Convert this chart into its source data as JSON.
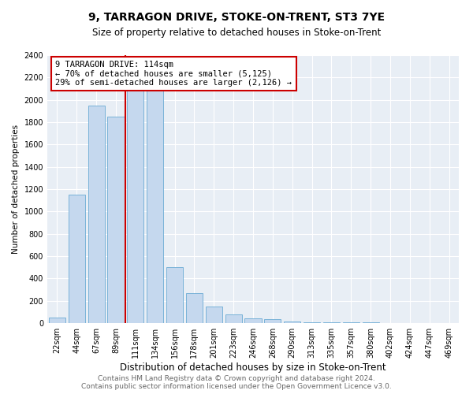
{
  "title": "9, TARRAGON DRIVE, STOKE-ON-TRENT, ST3 7YE",
  "subtitle": "Size of property relative to detached houses in Stoke-on-Trent",
  "xlabel": "Distribution of detached houses by size in Stoke-on-Trent",
  "ylabel": "Number of detached properties",
  "categories": [
    "22sqm",
    "44sqm",
    "67sqm",
    "89sqm",
    "111sqm",
    "134sqm",
    "156sqm",
    "178sqm",
    "201sqm",
    "223sqm",
    "246sqm",
    "268sqm",
    "290sqm",
    "313sqm",
    "335sqm",
    "357sqm",
    "380sqm",
    "402sqm",
    "424sqm",
    "447sqm",
    "469sqm"
  ],
  "values": [
    50,
    1150,
    1950,
    1850,
    2150,
    2150,
    500,
    270,
    150,
    80,
    45,
    35,
    15,
    10,
    5,
    5,
    4,
    3,
    3,
    2,
    2
  ],
  "bar_color": "#c5d8ee",
  "bar_edge_color": "#6aaad4",
  "red_line_x": 3.5,
  "marker_label": "9 TARRAGON DRIVE: 114sqm",
  "annotation_line1": "← 70% of detached houses are smaller (5,125)",
  "annotation_line2": "29% of semi-detached houses are larger (2,126) →",
  "annotation_box_color": "#cc0000",
  "ymin": 0,
  "ymax": 2400,
  "yticks": [
    0,
    200,
    400,
    600,
    800,
    1000,
    1200,
    1400,
    1600,
    1800,
    2000,
    2200,
    2400
  ],
  "plot_bg_color": "#e8eef5",
  "grid_color": "#ffffff",
  "footer_line1": "Contains HM Land Registry data © Crown copyright and database right 2024.",
  "footer_line2": "Contains public sector information licensed under the Open Government Licence v3.0.",
  "title_fontsize": 10,
  "subtitle_fontsize": 8.5,
  "xlabel_fontsize": 8.5,
  "ylabel_fontsize": 7.5,
  "tick_fontsize": 7,
  "footer_fontsize": 6.5
}
